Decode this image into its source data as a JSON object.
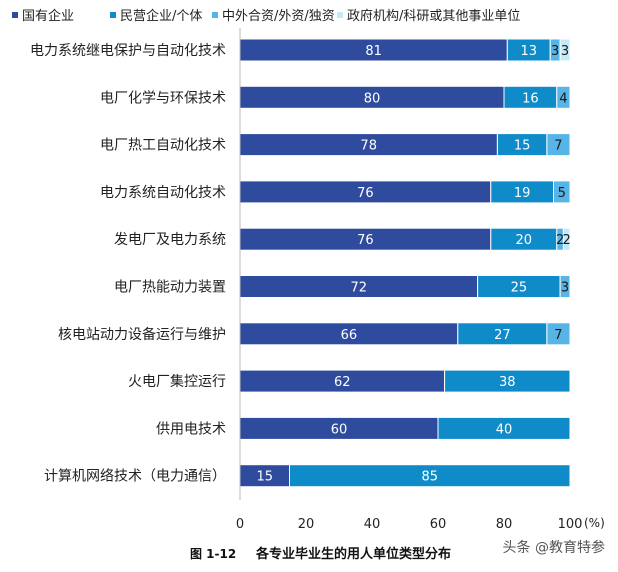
{
  "chart_data": {
    "type": "bar",
    "stacked": true,
    "orientation": "horizontal",
    "categories": [
      "电力系统继电保护与自动化技术",
      "电厂化学与环保技术",
      "电厂热工自动化技术",
      "电力系统自动化技术",
      "发电厂及电力系统",
      "电厂热能动力装置",
      "核电站动力设备运行与维护",
      "火电厂集控运行",
      "供用电技术",
      "计算机网络技术（电力通信）"
    ],
    "series": [
      {
        "name": "国有企业",
        "color": "#2F4B9E",
        "label_color": "#ffffff",
        "values": [
          81,
          80,
          78,
          76,
          76,
          72,
          66,
          62,
          60,
          15
        ]
      },
      {
        "name": "民营企业/个体",
        "color": "#0E8BC8",
        "label_color": "#ffffff",
        "values": [
          13,
          16,
          15,
          19,
          20,
          25,
          27,
          38,
          40,
          85
        ]
      },
      {
        "name": "中外合资/外资/独资",
        "color": "#56B4E6",
        "label_color": "#1a1a1a",
        "values": [
          3,
          4,
          7,
          5,
          2,
          3,
          7,
          0,
          0,
          0
        ]
      },
      {
        "name": "政府机构/科研或其他事业单位",
        "color": "#C4EAF8",
        "label_color": "#1a1a1a",
        "values": [
          3,
          0,
          0,
          0,
          2,
          0,
          0,
          0,
          0,
          0
        ]
      }
    ],
    "xlim": [
      0,
      100
    ],
    "xticks": [
      0,
      20,
      40,
      60,
      80,
      100
    ],
    "xunit": "(%)",
    "legend": "top",
    "grid": false,
    "caption_number": "图 1-12",
    "caption": "各专业毕业生的用人单位类型分布",
    "watermark": "头条 @教育特参"
  }
}
